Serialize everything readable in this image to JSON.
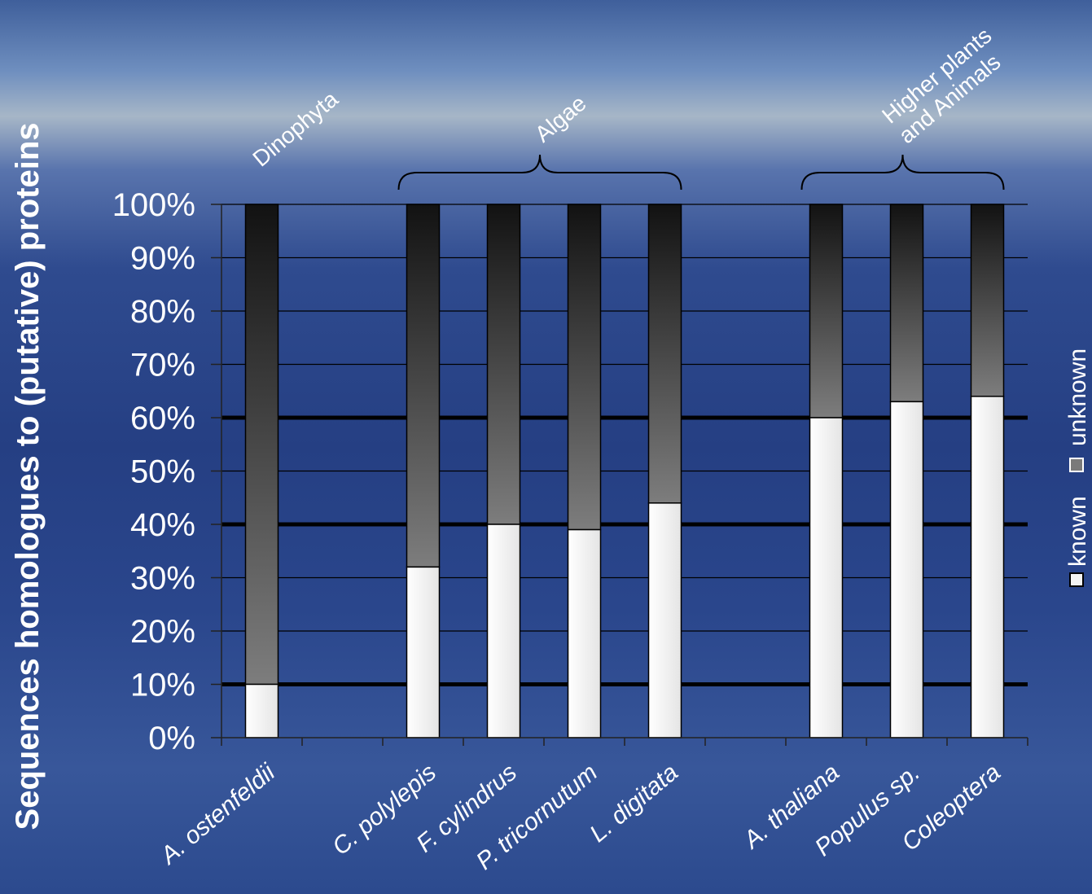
{
  "chart_data": {
    "type": "bar",
    "stacked": true,
    "ylabel": "Sequences homologues to (putative) proteins",
    "ylim": [
      0,
      100
    ],
    "yticks": [
      "0%",
      "10%",
      "20%",
      "30%",
      "40%",
      "50%",
      "60%",
      "70%",
      "80%",
      "90%",
      "100%"
    ],
    "categories": [
      "A. ostenfeldii",
      "",
      "C. polylepis",
      "F. cylindrus",
      "P. tricornutum",
      "L. digitata",
      "",
      "A. thaliana",
      "Populus sp.",
      "Coleoptera"
    ],
    "series": [
      {
        "name": "known",
        "values": [
          10,
          null,
          32,
          40,
          39,
          44,
          null,
          60,
          63,
          64
        ],
        "color": "#f4f4f4"
      },
      {
        "name": "unknown",
        "values": [
          90,
          null,
          68,
          60,
          61,
          56,
          null,
          40,
          37,
          36
        ],
        "color": "#5a5a5a"
      }
    ],
    "groups": [
      {
        "label": "Dinophyta",
        "from": 0,
        "to": 0,
        "brace": false
      },
      {
        "label": "Algae",
        "from": 2,
        "to": 5,
        "brace": true
      },
      {
        "label": "Higher plants",
        "label2": "and Animals",
        "from": 7,
        "to": 9,
        "brace": true
      }
    ],
    "legend": {
      "position": "right",
      "orientation": "vertical",
      "items": [
        "known",
        "unknown"
      ]
    },
    "grid": true,
    "colors": {
      "known": "#f4f4f4",
      "unknown_top": "#141414",
      "unknown_bottom": "#7a7a7a",
      "grid": "#000000",
      "text": "#ffffff"
    }
  }
}
